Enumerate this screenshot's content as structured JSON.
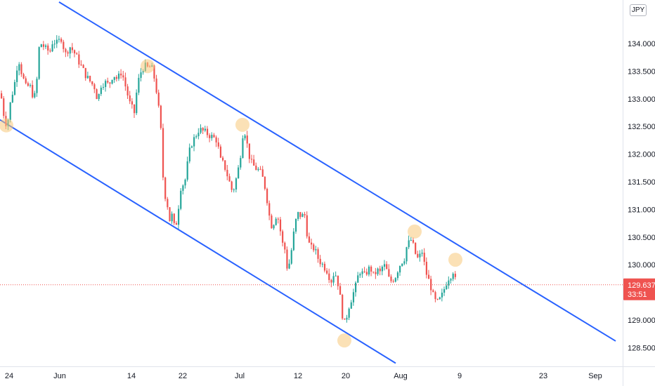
{
  "chart_data": {
    "type": "candlestick",
    "currency_label": "JPY",
    "x_ticks": [
      "24",
      "Jun",
      "14",
      "22",
      "Jul",
      "12",
      "20",
      "Aug",
      "9",
      "23",
      "Sep"
    ],
    "y_ticks": [
      "134.000",
      "133.500",
      "133.000",
      "132.500",
      "132.000",
      "131.500",
      "131.000",
      "130.500",
      "130.000",
      "129.000",
      "128.500"
    ],
    "ylim": [
      128.2,
      134.5
    ],
    "last_price": 129.637,
    "last_price_label": "129.637",
    "countdown_label": "33:51",
    "colors": {
      "up": "#26a69a",
      "down": "#ef5350",
      "trendline": "#2962ff",
      "touch": "#f7c97a",
      "last_price": "#ef5350",
      "axis_text": "#131722"
    },
    "path": [
      [
        0,
        133.1
      ],
      [
        5,
        132.65
      ],
      [
        9,
        132.5
      ],
      [
        14,
        132.95
      ],
      [
        20,
        133.3
      ],
      [
        25,
        133.75
      ],
      [
        30,
        133.45
      ],
      [
        36,
        133.2
      ],
      [
        41,
        133.25
      ],
      [
        46,
        133.05
      ],
      [
        50,
        133.05
      ],
      [
        54,
        133.9
      ],
      [
        58,
        134.0
      ],
      [
        64,
        133.9
      ],
      [
        70,
        133.85
      ],
      [
        74,
        134.05
      ],
      [
        80,
        134.0
      ],
      [
        86,
        134.1
      ],
      [
        92,
        133.8
      ],
      [
        98,
        133.95
      ],
      [
        104,
        133.85
      ],
      [
        110,
        133.7
      ],
      [
        116,
        133.55
      ],
      [
        122,
        133.4
      ],
      [
        128,
        133.3
      ],
      [
        134,
        133.2
      ],
      [
        138,
        132.95
      ],
      [
        142,
        133.25
      ],
      [
        148,
        133.3
      ],
      [
        154,
        133.25
      ],
      [
        160,
        133.45
      ],
      [
        166,
        133.35
      ],
      [
        172,
        133.5
      ],
      [
        178,
        133.2
      ],
      [
        184,
        132.9
      ],
      [
        190,
        132.75
      ],
      [
        194,
        133.2
      ],
      [
        198,
        133.45
      ],
      [
        204,
        133.6
      ],
      [
        210,
        133.55
      ],
      [
        214,
        133.6
      ],
      [
        220,
        133.3
      ],
      [
        224,
        132.9
      ],
      [
        228,
        132.4
      ],
      [
        232,
        131.3
      ],
      [
        236,
        131.2
      ],
      [
        240,
        130.8
      ],
      [
        244,
        130.9
      ],
      [
        248,
        130.6
      ],
      [
        252,
        130.95
      ],
      [
        256,
        131.4
      ],
      [
        262,
        131.5
      ],
      [
        266,
        131.85
      ],
      [
        270,
        132.15
      ],
      [
        276,
        132.3
      ],
      [
        282,
        132.45
      ],
      [
        290,
        132.4
      ],
      [
        296,
        132.35
      ],
      [
        302,
        132.3
      ],
      [
        308,
        132.25
      ],
      [
        312,
        131.9
      ],
      [
        318,
        131.8
      ],
      [
        324,
        131.55
      ],
      [
        330,
        131.3
      ],
      [
        334,
        131.5
      ],
      [
        340,
        131.85
      ],
      [
        344,
        132.35
      ],
      [
        348,
        132.4
      ],
      [
        352,
        132.05
      ],
      [
        356,
        131.85
      ],
      [
        362,
        131.75
      ],
      [
        368,
        131.7
      ],
      [
        372,
        131.6
      ],
      [
        376,
        131.4
      ],
      [
        380,
        131.1
      ],
      [
        384,
        130.7
      ],
      [
        388,
        130.75
      ],
      [
        392,
        130.9
      ],
      [
        396,
        130.8
      ],
      [
        400,
        130.4
      ],
      [
        404,
        130.3
      ],
      [
        408,
        129.9
      ],
      [
        412,
        130.1
      ],
      [
        416,
        130.5
      ],
      [
        420,
        130.8
      ],
      [
        424,
        130.95
      ],
      [
        428,
        130.85
      ],
      [
        432,
        130.95
      ],
      [
        436,
        130.55
      ],
      [
        440,
        130.3
      ],
      [
        446,
        130.3
      ],
      [
        452,
        130.1
      ],
      [
        458,
        130.0
      ],
      [
        464,
        129.9
      ],
      [
        470,
        129.7
      ],
      [
        474,
        129.85
      ],
      [
        478,
        129.8
      ],
      [
        482,
        129.5
      ],
      [
        486,
        129.1
      ],
      [
        490,
        128.9
      ],
      [
        494,
        129.2
      ],
      [
        498,
        129.35
      ],
      [
        502,
        129.5
      ],
      [
        506,
        129.65
      ],
      [
        510,
        129.9
      ],
      [
        514,
        129.85
      ],
      [
        518,
        129.8
      ],
      [
        522,
        129.9
      ],
      [
        526,
        129.95
      ],
      [
        530,
        129.8
      ],
      [
        536,
        129.9
      ],
      [
        540,
        129.85
      ],
      [
        544,
        130.0
      ],
      [
        548,
        129.95
      ],
      [
        552,
        129.75
      ],
      [
        556,
        129.7
      ],
      [
        562,
        129.8
      ],
      [
        566,
        129.95
      ],
      [
        570,
        130.05
      ],
      [
        574,
        130.1
      ],
      [
        578,
        130.35
      ],
      [
        584,
        130.45
      ],
      [
        588,
        130.3
      ],
      [
        592,
        130.1
      ],
      [
        596,
        130.15
      ],
      [
        600,
        130.25
      ],
      [
        604,
        129.9
      ],
      [
        608,
        129.75
      ],
      [
        612,
        129.6
      ],
      [
        616,
        129.4
      ],
      [
        620,
        129.3
      ],
      [
        624,
        129.35
      ],
      [
        628,
        129.45
      ],
      [
        632,
        129.6
      ],
      [
        636,
        129.75
      ],
      [
        640,
        129.8
      ],
      [
        644,
        129.9
      ],
      [
        648,
        129.64
      ]
    ],
    "upper_channel": [
      [
        84,
        134.75
      ],
      [
        876,
        128.62
      ]
    ],
    "lower_channel": [
      [
        0,
        132.62
      ],
      [
        563,
        128.22
      ]
    ],
    "touch_points": [
      [
        9,
        132.52
      ],
      [
        210,
        133.59
      ],
      [
        345,
        132.53
      ],
      [
        590,
        130.6
      ],
      [
        648,
        130.09
      ],
      [
        490,
        128.63
      ]
    ]
  }
}
